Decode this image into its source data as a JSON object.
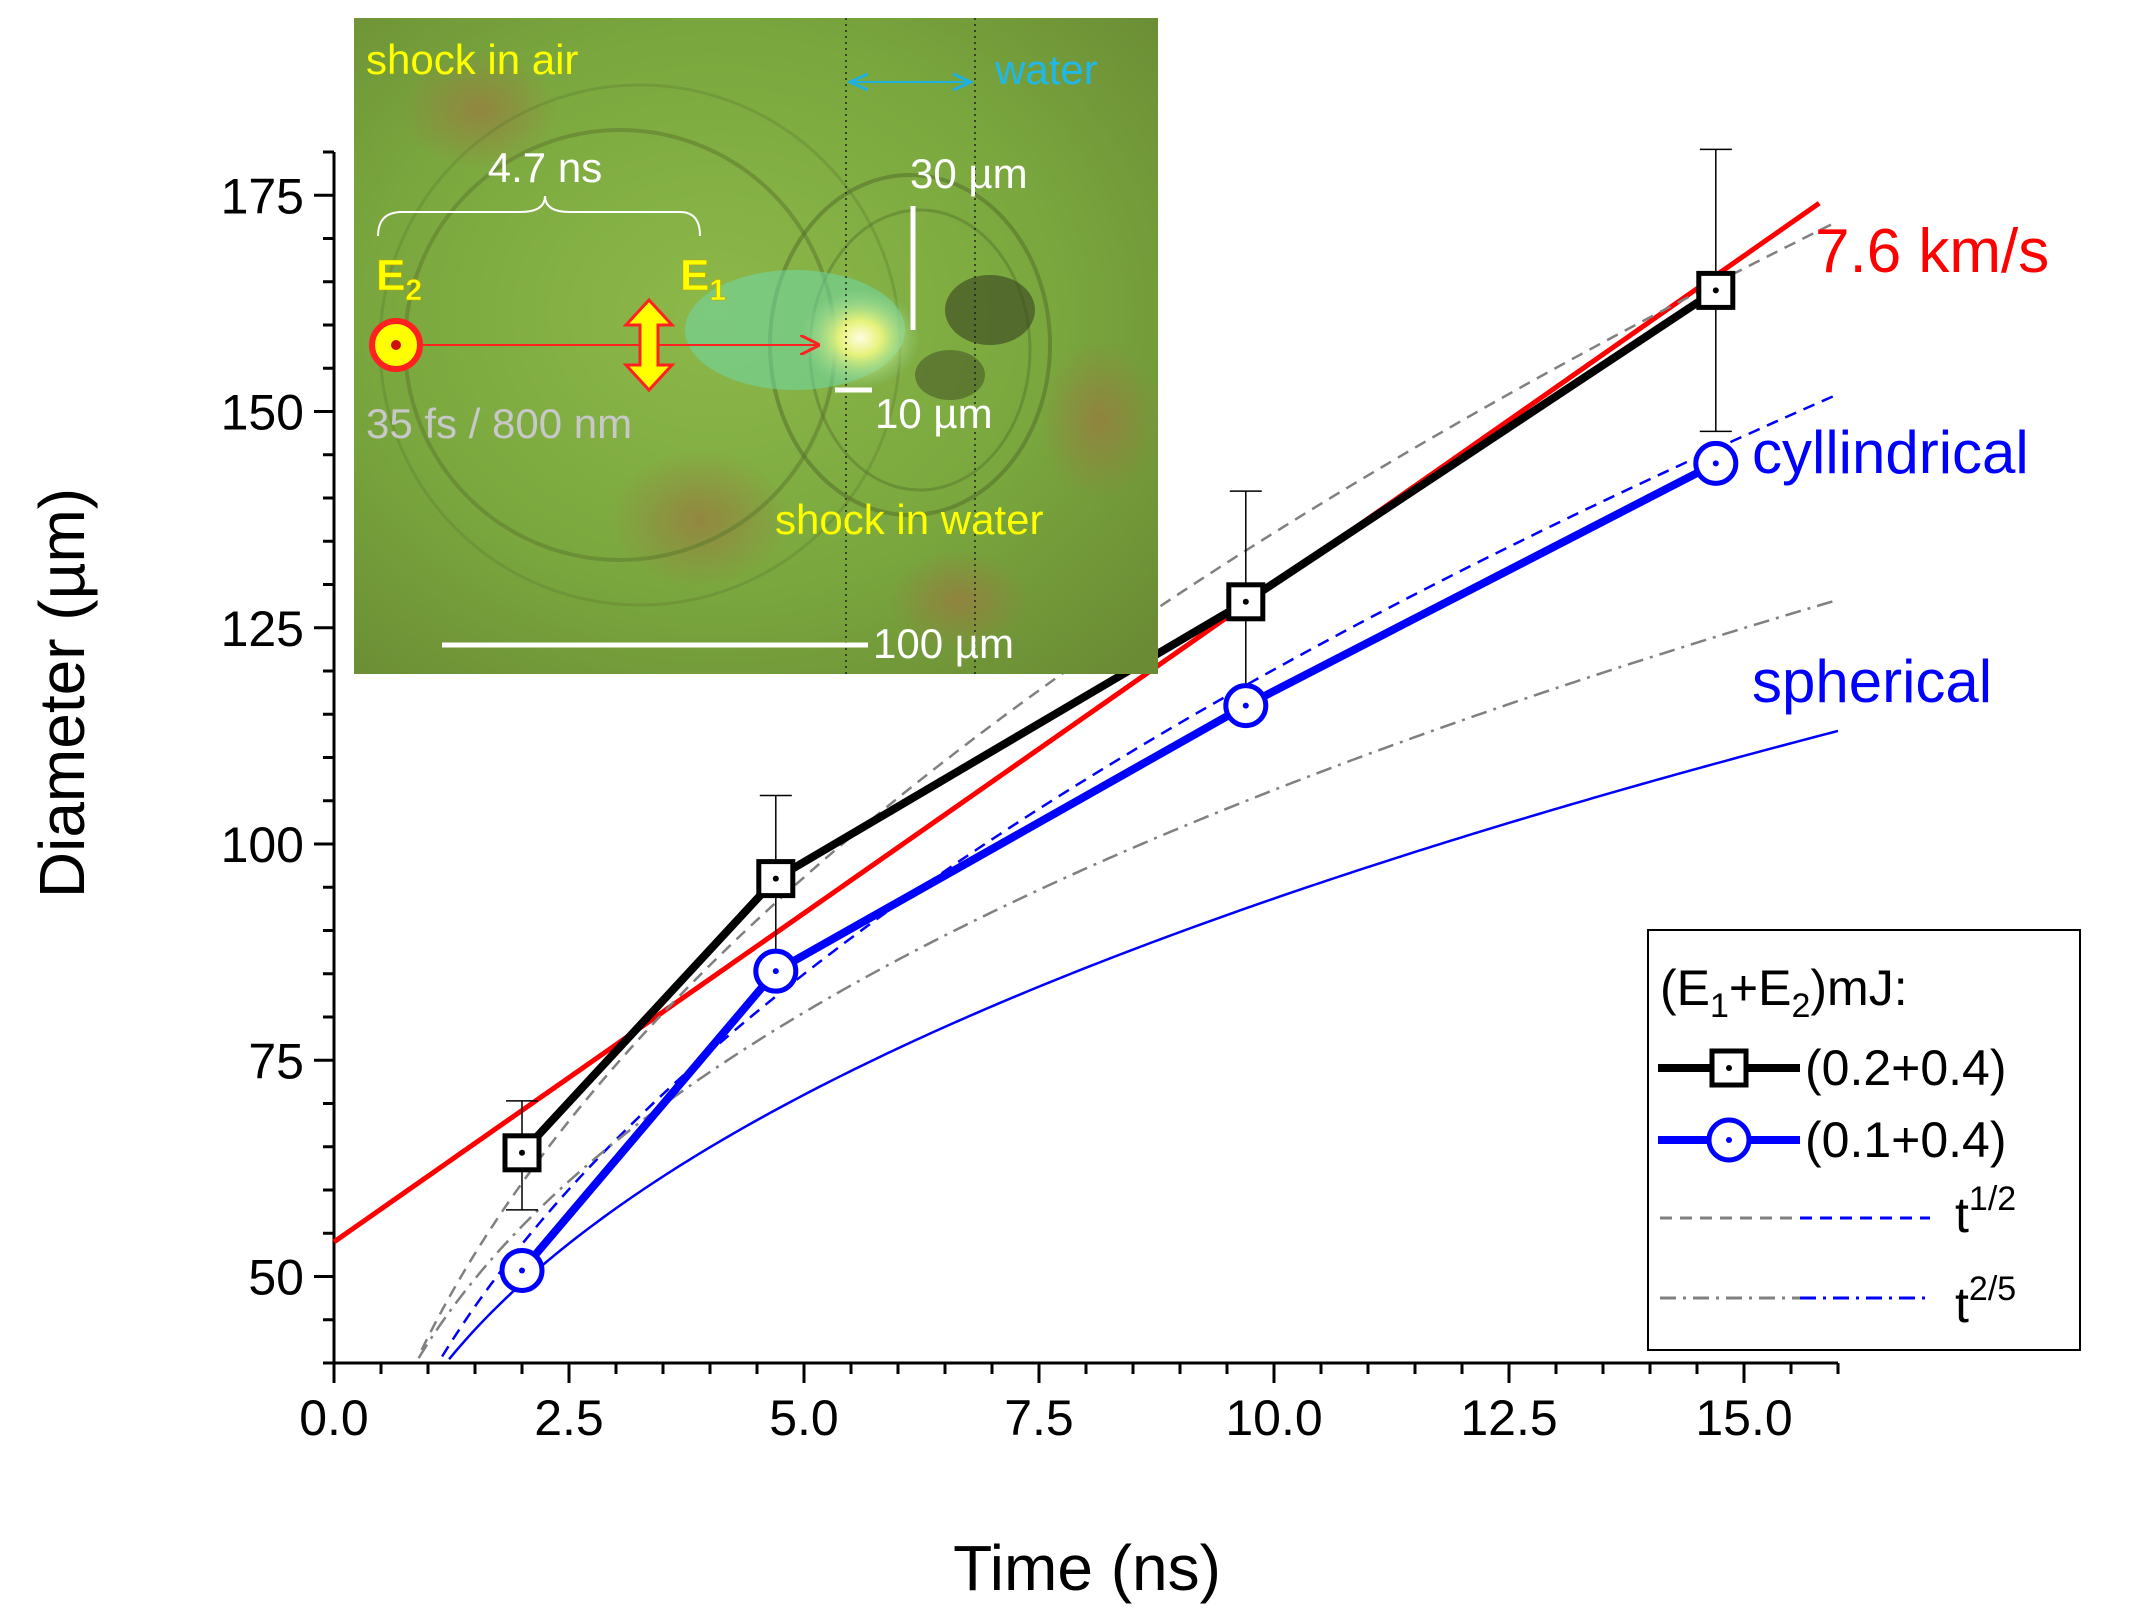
{
  "chart_data": {
    "type": "line",
    "xlabel": "Time (ns)",
    "ylabel": "Diameter (µm)",
    "xlim": [
      0,
      16
    ],
    "ylim": [
      40,
      180
    ],
    "xticks": [
      "0.0",
      "2.5",
      "5.0",
      "7.5",
      "10.0",
      "12.5",
      "15.0"
    ],
    "yticks": [
      "50",
      "75",
      "100",
      "125",
      "150",
      "175"
    ],
    "series": [
      {
        "name": "(0.2+0.4)",
        "color": "#000000",
        "marker": "square",
        "x": [
          2.0,
          4.7,
          9.7,
          14.7
        ],
        "y": [
          64.3,
          96.0,
          128.0,
          164.0
        ],
        "err_hi": [
          6.0,
          9.6,
          12.8,
          16.3
        ],
        "err_lo": [
          6.6,
          9.6,
          12.8,
          16.3
        ]
      },
      {
        "name": "(0.1+0.4)",
        "color": "#0000ff",
        "marker": "circle",
        "x": [
          2.0,
          4.7,
          9.7,
          14.7
        ],
        "y": [
          50.7,
          85.3,
          116.0,
          144.0
        ]
      }
    ],
    "fits": [
      {
        "name": "7.6 km/s",
        "type": "linear",
        "slope": 7.6,
        "intercept": 54.0,
        "x_range": [
          0,
          15.8
        ],
        "color": "#ff0000"
      },
      {
        "name": "t^1/2 (0.2+0.4)",
        "type": "power",
        "coef": 43.0,
        "exp": 0.5,
        "x_range": [
          0.78,
          16.0
        ],
        "color": "#808080",
        "dash": "dashed"
      },
      {
        "name": "t^1/2 (0.1+0.4)",
        "type": "power",
        "coef": 38.0,
        "exp": 0.5,
        "x_range": [
          1.15,
          16.0
        ],
        "color": "#0000ff",
        "dash": "dashed"
      },
      {
        "name": "t^2/5 (0.2+0.4)",
        "type": "power",
        "coef": 42.3,
        "exp": 0.4,
        "x_range": [
          0.9,
          16.0
        ],
        "color": "#808080",
        "dash": "dashdot"
      },
      {
        "name": "t^2/5 (0.1+0.4) spherical",
        "type": "power",
        "coef": 37.3,
        "exp": 0.4,
        "x_range": [
          1.15,
          16.0
        ],
        "color": "#0000ff",
        "dash": "solid-thin"
      }
    ],
    "annotations": {
      "velocity": "7.6 km/s",
      "cylindrical": "cyllindrical",
      "spherical": "spherical"
    },
    "legend": {
      "title_prefix": "(E",
      "title_sub1": "1",
      "title_plus": "+E",
      "title_sub2": "2",
      "title_suffix": ")mJ:",
      "item1": "(0.2+0.4)",
      "item2": "(0.1+0.4)",
      "t_half_base": "t",
      "t_half_exp": "1/2",
      "t_twofifth_base": "t",
      "t_twofifth_exp": "2/5",
      "placement": "bottom-right"
    },
    "inset": {
      "shock_air": "shock in air",
      "water": "water",
      "time_gap": "4.7 ns",
      "scale_30": "30 µm",
      "E2_base": "E",
      "E2_sub": "2",
      "E1_base": "E",
      "E1_sub": "1",
      "pulse": "35 fs / 800 nm",
      "scale_10": "10 µm",
      "shock_water": "shock in water",
      "scale_100": "100 µm"
    }
  }
}
